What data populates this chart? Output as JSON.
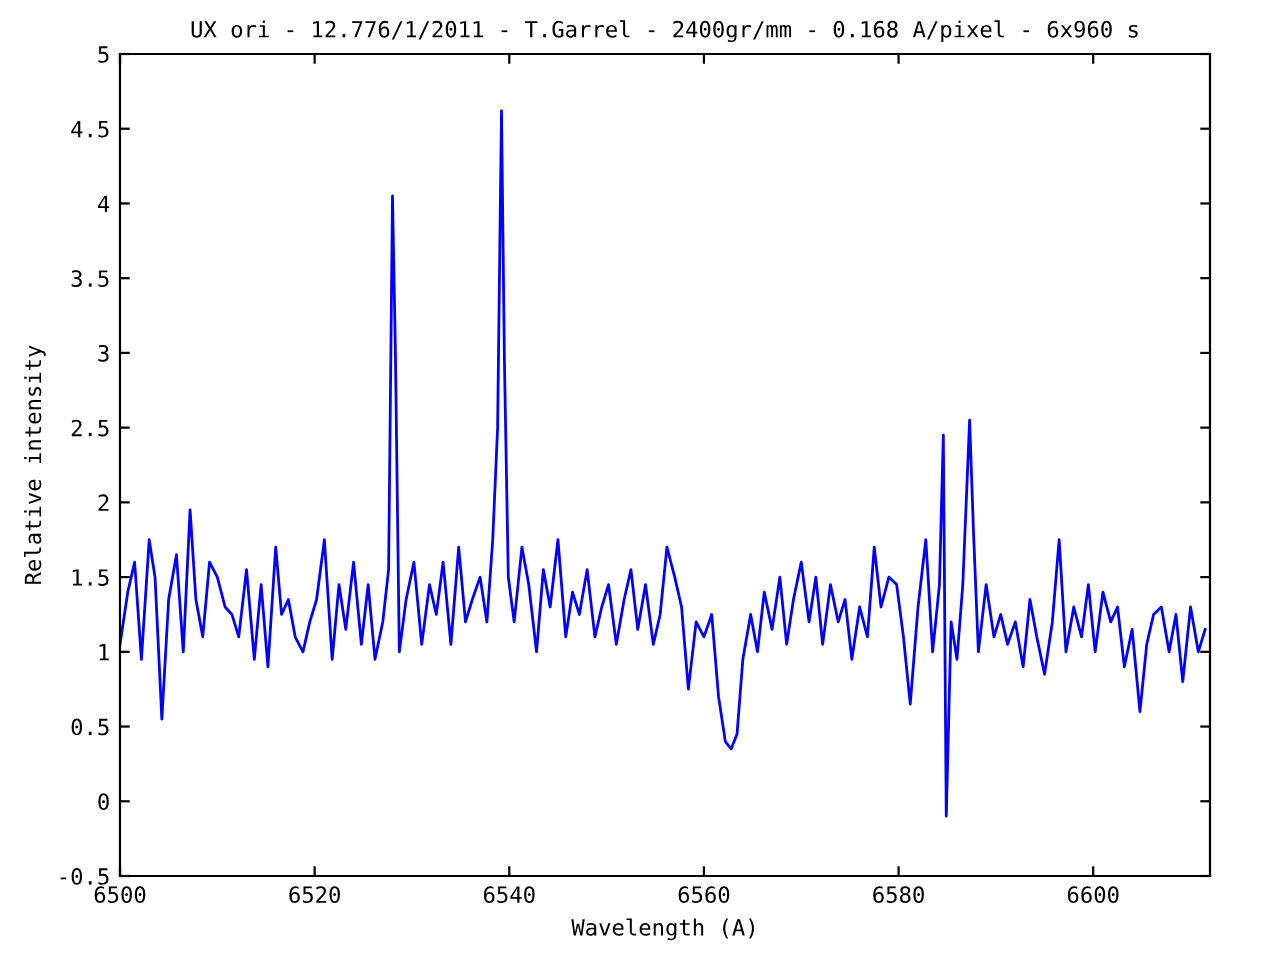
{
  "chart_data": {
    "type": "line",
    "title": "UX ori - 12.776/1/2011 - T.Garrel - 2400gr/mm - 0.168 A/pixel - 6x960 s",
    "xlabel": "Wavelength (A)",
    "ylabel": "Relative intensity",
    "x": [
      6500,
      6500.8,
      6501.5,
      6502.2,
      6503,
      6503.6,
      6504.3,
      6505,
      6505.8,
      6506.5,
      6507.2,
      6507.8,
      6508.5,
      6509.2,
      6510,
      6510.8,
      6511.5,
      6512.2,
      6513,
      6513.8,
      6514.5,
      6515.2,
      6516,
      6516.6,
      6517.3,
      6518,
      6518.8,
      6519.5,
      6520.2,
      6521,
      6521.8,
      6522.5,
      6523.2,
      6524,
      6524.8,
      6525.5,
      6526.2,
      6527,
      6527.6,
      6528,
      6528.3,
      6528.7,
      6529.4,
      6530.2,
      6531,
      6531.8,
      6532.5,
      6533.2,
      6534,
      6534.8,
      6535.5,
      6536.2,
      6537,
      6537.7,
      6538.3,
      6538.8,
      6539.2,
      6539.5,
      6539.9,
      6540.5,
      6541.3,
      6542,
      6542.8,
      6543.5,
      6544.2,
      6545,
      6545.8,
      6546.5,
      6547.2,
      6548,
      6548.8,
      6549.5,
      6550.2,
      6551,
      6551.8,
      6552.5,
      6553.2,
      6554,
      6554.8,
      6555.5,
      6556.2,
      6557,
      6557.7,
      6558.4,
      6559.2,
      6560,
      6560.8,
      6561.5,
      6562.2,
      6562.8,
      6563.4,
      6564,
      6564.8,
      6565.5,
      6566.2,
      6567,
      6567.8,
      6568.5,
      6569.2,
      6570,
      6570.8,
      6571.5,
      6572.2,
      6573,
      6573.8,
      6574.5,
      6575.2,
      6576,
      6576.8,
      6577.5,
      6578.2,
      6579,
      6579.8,
      6580.5,
      6581.2,
      6582,
      6582.8,
      6583.5,
      6584.2,
      6584.6,
      6584.9,
      6585.4,
      6586,
      6586.6,
      6587.3,
      6587.7,
      6588.2,
      6589,
      6589.8,
      6590.5,
      6591.2,
      6592,
      6592.8,
      6593.5,
      6594.2,
      6595,
      6595.8,
      6596.5,
      6597.2,
      6598,
      6598.8,
      6599.5,
      6600.2,
      6601,
      6601.8,
      6602.5,
      6603.2,
      6604,
      6604.8,
      6605.5,
      6606.2,
      6607,
      6607.8,
      6608.5,
      6609.2,
      6610,
      6610.8,
      6611.5
    ],
    "series": [
      {
        "color": "#0000ff",
        "values": [
          1.05,
          1.4,
          1.6,
          0.95,
          1.75,
          1.5,
          0.55,
          1.35,
          1.65,
          1.0,
          1.95,
          1.35,
          1.1,
          1.6,
          1.5,
          1.3,
          1.25,
          1.1,
          1.55,
          0.95,
          1.45,
          0.9,
          1.7,
          1.25,
          1.35,
          1.1,
          1.0,
          1.2,
          1.35,
          1.75,
          0.95,
          1.45,
          1.15,
          1.6,
          1.05,
          1.45,
          0.95,
          1.2,
          1.55,
          4.05,
          3.0,
          1.0,
          1.35,
          1.6,
          1.05,
          1.45,
          1.25,
          1.6,
          1.05,
          1.7,
          1.2,
          1.35,
          1.5,
          1.2,
          1.75,
          2.5,
          4.62,
          2.95,
          1.5,
          1.2,
          1.7,
          1.45,
          1.0,
          1.55,
          1.3,
          1.75,
          1.1,
          1.4,
          1.25,
          1.55,
          1.1,
          1.3,
          1.45,
          1.05,
          1.35,
          1.55,
          1.15,
          1.45,
          1.05,
          1.25,
          1.7,
          1.5,
          1.3,
          0.75,
          1.2,
          1.1,
          1.25,
          0.7,
          0.4,
          0.35,
          0.45,
          0.95,
          1.25,
          1.0,
          1.4,
          1.15,
          1.5,
          1.05,
          1.35,
          1.6,
          1.2,
          1.5,
          1.05,
          1.45,
          1.2,
          1.35,
          0.95,
          1.3,
          1.1,
          1.7,
          1.3,
          1.5,
          1.45,
          1.1,
          0.65,
          1.3,
          1.75,
          1.0,
          1.45,
          2.45,
          -0.1,
          1.2,
          0.95,
          1.45,
          2.55,
          1.8,
          1.0,
          1.45,
          1.1,
          1.25,
          1.05,
          1.2,
          0.9,
          1.35,
          1.1,
          0.85,
          1.2,
          1.75,
          1.0,
          1.3,
          1.1,
          1.45,
          1.0,
          1.4,
          1.2,
          1.3,
          0.9,
          1.15,
          0.6,
          1.05,
          1.25,
          1.3,
          1.0,
          1.25,
          0.8,
          1.3,
          1.0,
          1.15
        ]
      }
    ],
    "xlim": [
      6500,
      6612
    ],
    "ylim": [
      -0.5,
      5
    ],
    "xticks": [
      6500,
      6520,
      6540,
      6560,
      6580,
      6600
    ],
    "yticks": [
      -0.5,
      0,
      0.5,
      1,
      1.5,
      2,
      2.5,
      3,
      3.5,
      4,
      4.5,
      5
    ],
    "grid": false,
    "legend": false,
    "marker": "none",
    "line_style": "solid"
  }
}
